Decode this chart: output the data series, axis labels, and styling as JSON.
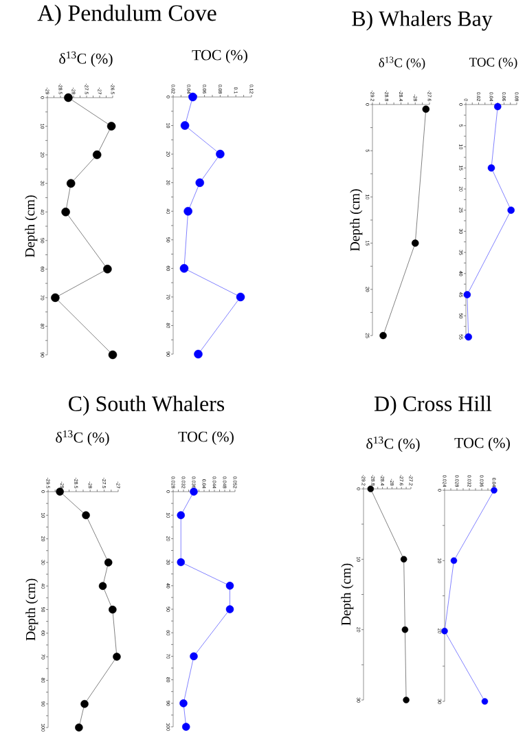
{
  "chart_data": [
    {
      "type": "line",
      "title": "A) Pendulum Cove",
      "xlabel": "δ$^{13}$C (%)",
      "ylabel": "Depth (cm)",
      "marker": "circle",
      "xlim": [
        -29,
        -26.5
      ],
      "xticks": [
        -29,
        {
          "value": -28.75,
          "label": null
        },
        -28.5,
        {
          "value": -28.25,
          "label": null
        },
        -28,
        {
          "value": -27.75,
          "label": null
        },
        -27.5,
        {
          "value": -27.25,
          "label": null
        },
        -27,
        {
          "value": -26.75,
          "label": null
        },
        -26.5
      ],
      "ylim": [
        90,
        0
      ],
      "yticks": [
        0,
        {
          "value": 5,
          "label": null
        },
        10,
        {
          "value": 15,
          "label": null
        },
        20,
        {
          "value": 25,
          "label": null
        },
        30,
        {
          "value": 35,
          "label": null
        },
        40,
        {
          "value": 45,
          "label": null
        },
        50,
        {
          "value": 55,
          "label": null
        },
        60,
        {
          "value": 65,
          "label": null
        },
        70,
        {
          "value": 75,
          "label": null
        },
        80,
        {
          "value": 85,
          "label": null
        },
        90
      ],
      "series": [
        {
          "color": "#000000",
          "x": [
            -28.2,
            -26.55,
            -27.1,
            -28.1,
            -28.3,
            -26.7,
            -28.7,
            -26.5
          ],
          "values": [
            0,
            10,
            20,
            30,
            40,
            60,
            70,
            90
          ]
        }
      ]
    },
    {
      "type": "line",
      "xlabel": "TOC (%)",
      "marker": "circle",
      "xlim": [
        0.02,
        0.12
      ],
      "xticks": [
        0.02,
        {
          "value": 0.03,
          "label": null
        },
        0.04,
        {
          "value": 0.05,
          "label": null
        },
        0.06,
        {
          "value": 0.07,
          "label": null
        },
        0.08,
        {
          "value": 0.09,
          "label": null
        },
        0.1,
        {
          "value": 0.11,
          "label": null
        },
        0.12
      ],
      "ylim": [
        90,
        0
      ],
      "yticks": [
        0,
        {
          "value": 5,
          "label": null
        },
        10,
        {
          "value": 15,
          "label": null
        },
        20,
        {
          "value": 25,
          "label": null
        },
        30,
        {
          "value": 35,
          "label": null
        },
        40,
        {
          "value": 45,
          "label": null
        },
        50,
        {
          "value": 55,
          "label": null
        },
        60,
        {
          "value": 65,
          "label": null
        },
        70,
        {
          "value": 75,
          "label": null
        },
        80,
        {
          "value": 85,
          "label": null
        },
        90
      ],
      "series": [
        {
          "color": "#0000ff",
          "x": [
            0.045,
            0.035,
            0.08,
            0.054,
            0.039,
            0.034,
            0.106,
            0.052
          ],
          "values": [
            0,
            10,
            20,
            30,
            40,
            60,
            70,
            90
          ]
        }
      ]
    },
    {
      "type": "line",
      "title": "B) Whalers Bay",
      "xlabel": "δ$^{13}$C (%)",
      "ylabel": "Depth (cm)",
      "marker": "circle",
      "xlim": [
        -29.2,
        -27.6
      ],
      "xticks": [
        -29.2,
        {
          "value": -29,
          "label": null
        },
        -28.8,
        {
          "value": -28.6,
          "label": null
        },
        -28.4,
        {
          "value": -28.2,
          "label": null
        },
        -28,
        {
          "value": -27.8,
          "label": null
        },
        -27.6
      ],
      "ylim": [
        25,
        0
      ],
      "yticks": [
        0,
        {
          "value": 2.5,
          "label": null
        },
        5,
        {
          "value": 7.5,
          "label": null
        },
        10,
        {
          "value": 12.5,
          "label": null
        },
        15,
        {
          "value": 17.5,
          "label": null
        },
        20,
        {
          "value": 22.5,
          "label": null
        },
        25
      ],
      "series": [
        {
          "color": "#000000",
          "x": [
            -27.7,
            -28.0,
            -28.9
          ],
          "values": [
            0.5,
            15,
            25
          ]
        }
      ]
    },
    {
      "type": "line",
      "xlabel": "TOC (%)",
      "marker": "circle",
      "xlim": [
        0,
        0.08
      ],
      "xticks": [
        0,
        {
          "value": 0.01,
          "label": null
        },
        0.02,
        {
          "value": 0.03,
          "label": null
        },
        0.04,
        {
          "value": 0.05,
          "label": null
        },
        0.06,
        {
          "value": 0.07,
          "label": null
        },
        0.08
      ],
      "ylim": [
        55,
        0
      ],
      "yticks": [
        0,
        {
          "value": 2.5,
          "label": null
        },
        5,
        {
          "value": 7.5,
          "label": null
        },
        10,
        {
          "value": 12.5,
          "label": null
        },
        15,
        {
          "value": 17.5,
          "label": null
        },
        20,
        {
          "value": 22.5,
          "label": null
        },
        25,
        {
          "value": 27.5,
          "label": null
        },
        30,
        {
          "value": 32.5,
          "label": null
        },
        35,
        {
          "value": 37.5,
          "label": null
        },
        40,
        {
          "value": 42.5,
          "label": null
        },
        45,
        {
          "value": 47.5,
          "label": null
        },
        50,
        {
          "value": 52.5,
          "label": null
        },
        55
      ],
      "series": [
        {
          "color": "#0000ff",
          "x": [
            0.05,
            0.04,
            0.071,
            0.002,
            0.004
          ],
          "values": [
            0.5,
            15,
            25,
            45,
            55
          ]
        }
      ]
    },
    {
      "type": "line",
      "title": "C) South Whalers",
      "xlabel": "δ$^{13}$C (%)",
      "ylabel": "Depth (cm)",
      "marker": "circle",
      "xlim": [
        -29.5,
        -27
      ],
      "xticks": [
        -29.5,
        {
          "value": -29.25,
          "label": null
        },
        -29,
        {
          "value": -28.75,
          "label": null
        },
        -28.5,
        {
          "value": -28.25,
          "label": null
        },
        -28,
        {
          "value": -27.75,
          "label": null
        },
        -27.5,
        {
          "value": -27.25,
          "label": null
        },
        -27
      ],
      "ylim": [
        100,
        0
      ],
      "yticks": [
        0,
        {
          "value": 5,
          "label": null
        },
        10,
        {
          "value": 15,
          "label": null
        },
        20,
        {
          "value": 25,
          "label": null
        },
        30,
        {
          "value": 35,
          "label": null
        },
        40,
        {
          "value": 45,
          "label": null
        },
        50,
        {
          "value": 55,
          "label": null
        },
        60,
        {
          "value": 65,
          "label": null
        },
        70,
        {
          "value": 75,
          "label": null
        },
        80,
        {
          "value": 85,
          "label": null
        },
        90,
        {
          "value": 95,
          "label": null
        },
        100
      ],
      "series": [
        {
          "color": "#000000",
          "x": [
            -29.08,
            -28.15,
            -27.35,
            -27.55,
            -27.2,
            -27.05,
            -28.2,
            -28.4
          ],
          "values": [
            0,
            10,
            30,
            40,
            50,
            70,
            90,
            100
          ]
        }
      ]
    },
    {
      "type": "line",
      "xlabel": "TOC (%)",
      "marker": "circle",
      "xlim": [
        0.028,
        0.052
      ],
      "xticks": [
        0.028,
        {
          "value": 0.03,
          "label": null
        },
        0.032,
        {
          "value": 0.034,
          "label": null
        },
        0.036,
        {
          "value": 0.038,
          "label": null
        },
        0.04,
        {
          "value": 0.042,
          "label": null
        },
        0.044,
        {
          "value": 0.046,
          "label": null
        },
        0.048,
        {
          "value": 0.05,
          "label": null
        },
        0.052
      ],
      "ylim": [
        100,
        0
      ],
      "yticks": [
        0,
        {
          "value": 5,
          "label": null
        },
        10,
        {
          "value": 15,
          "label": null
        },
        20,
        {
          "value": 25,
          "label": null
        },
        30,
        {
          "value": 35,
          "label": null
        },
        40,
        {
          "value": 45,
          "label": null
        },
        50,
        {
          "value": 55,
          "label": null
        },
        60,
        {
          "value": 65,
          "label": null
        },
        70,
        {
          "value": 75,
          "label": null
        },
        80,
        {
          "value": 85,
          "label": null
        },
        90,
        {
          "value": 95,
          "label": null
        },
        100
      ],
      "series": [
        {
          "color": "#0000ff",
          "x": [
            0.036,
            0.031,
            0.031,
            0.05,
            0.05,
            0.036,
            0.032,
            0.033
          ],
          "values": [
            0,
            10,
            30,
            40,
            50,
            70,
            90,
            100
          ]
        }
      ]
    },
    {
      "type": "line",
      "title": "D) Cross Hill",
      "xlabel": "δ$^{13}$C (%)",
      "ylabel": "Depth (cm)",
      "marker": "circle",
      "xlim": [
        -29.2,
        -27.2
      ],
      "xticks": [
        -29.2,
        {
          "value": -29,
          "label": null
        },
        -28.8,
        {
          "value": -28.6,
          "label": null
        },
        -28.4,
        {
          "value": -28.2,
          "label": null
        },
        -28,
        {
          "value": -27.8,
          "label": null
        },
        -27.6,
        {
          "value": -27.4,
          "label": null
        },
        -27.2
      ],
      "ylim": [
        30,
        0
      ],
      "yticks": [
        0,
        {
          "value": 5,
          "label": null
        },
        10,
        {
          "value": 15,
          "label": null
        },
        20,
        {
          "value": 25,
          "label": null
        },
        30
      ],
      "series": [
        {
          "color": "#000000",
          "x": [
            -28.9,
            -27.5,
            -27.45,
            -27.4
          ],
          "values": [
            0,
            10,
            20,
            30
          ]
        }
      ]
    },
    {
      "type": "line",
      "xlabel": "TOC (%)",
      "marker": "circle",
      "xlim": [
        0.024,
        0.04
      ],
      "xticks": [
        0.024,
        {
          "value": 0.026,
          "label": null
        },
        0.028,
        {
          "value": 0.03,
          "label": null
        },
        0.032,
        {
          "value": 0.034,
          "label": null
        },
        0.036,
        {
          "value": 0.038,
          "label": null
        },
        0.04
      ],
      "ylim": [
        30,
        0
      ],
      "yticks": [
        0,
        {
          "value": 5,
          "label": null
        },
        10,
        {
          "value": 15,
          "label": null
        },
        20,
        {
          "value": 25,
          "label": null
        },
        30
      ],
      "series": [
        {
          "color": "#0000ff",
          "x": [
            0.04,
            0.027,
            0.024,
            0.037
          ],
          "values": [
            0,
            10,
            20,
            30
          ]
        }
      ]
    }
  ]
}
